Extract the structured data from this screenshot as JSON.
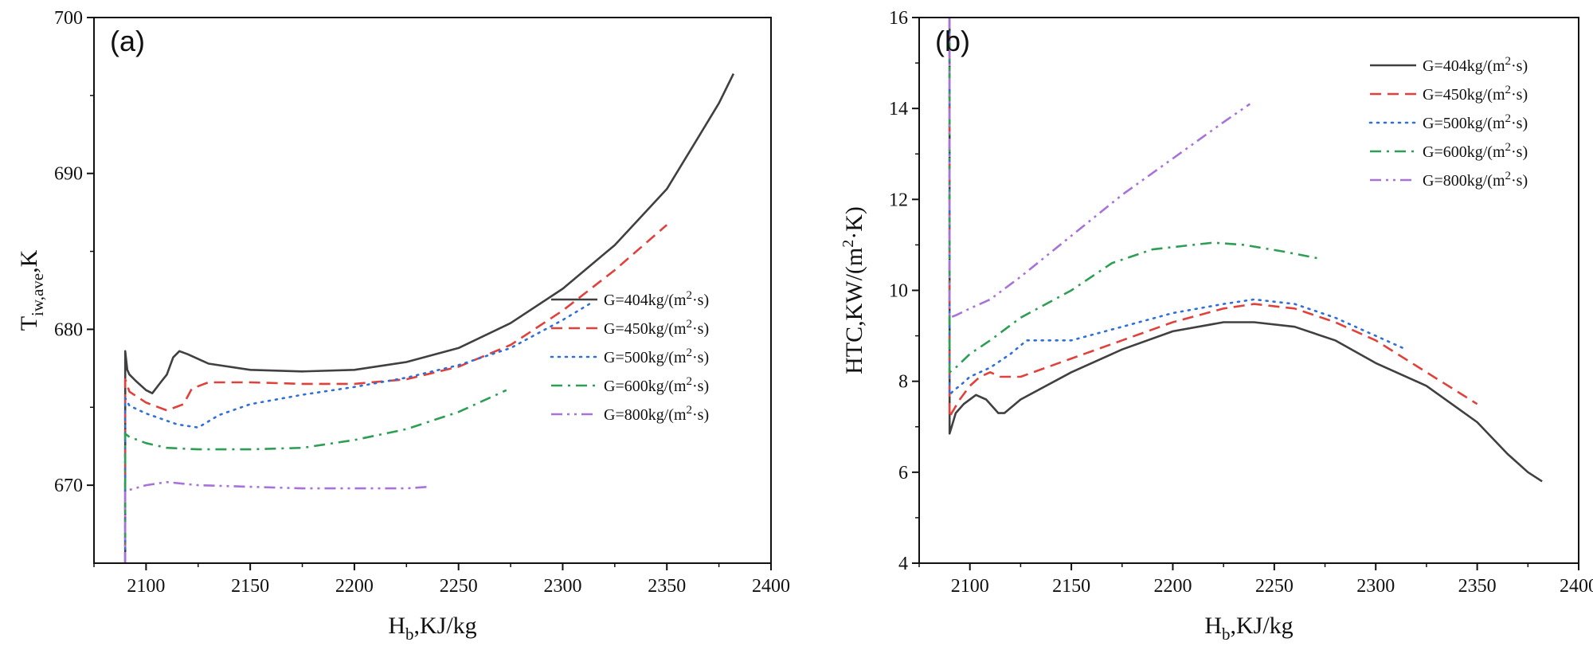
{
  "chart_data": [
    {
      "type": "line",
      "panel_label": "(a)",
      "xlabel": "H_b,KJ/kg",
      "ylabel": "T_iw,ave,K",
      "xlabel_main": "H",
      "xlabel_sub": "b",
      "xlabel_rest": ",KJ/kg",
      "ylabel_main": "T",
      "ylabel_sub": "iw,ave",
      "ylabel_rest": ",K",
      "xlim": [
        2075,
        2400
      ],
      "ylim": [
        665,
        700
      ],
      "xticks": [
        2100,
        2150,
        2200,
        2250,
        2300,
        2350,
        2400
      ],
      "yticks": [
        670,
        680,
        690,
        700
      ],
      "legend_position": "lower-right",
      "series": [
        {
          "name": "G=404kg/(m²·s)",
          "legend_text": "G=404kg/(m",
          "legend_sup": "2",
          "legend_tail": "·s)",
          "color": "#404040",
          "dash": "solid",
          "x": [
            2090,
            2090,
            2091,
            2092,
            2095,
            2100,
            2103,
            2107,
            2110,
            2113,
            2116,
            2120,
            2130,
            2150,
            2175,
            2200,
            2225,
            2250,
            2275,
            2300,
            2325,
            2350,
            2365,
            2375,
            2382
          ],
          "y": [
            665.0,
            678.6,
            677.4,
            677.1,
            676.7,
            676.1,
            675.9,
            676.6,
            677.1,
            678.2,
            678.6,
            678.4,
            677.8,
            677.4,
            677.3,
            677.4,
            677.9,
            678.8,
            680.4,
            682.6,
            685.4,
            689.0,
            692.3,
            694.5,
            696.4
          ]
        },
        {
          "name": "G=450kg/(m²·s)",
          "legend_text": "G=450kg/(m",
          "legend_sup": "2",
          "legend_tail": "·s)",
          "color": "#e0413b",
          "dash": "dashed",
          "x": [
            2090,
            2090,
            2092,
            2100,
            2110,
            2118,
            2122,
            2130,
            2150,
            2175,
            2200,
            2225,
            2250,
            2275,
            2300,
            2325,
            2350
          ],
          "y": [
            665.0,
            676.8,
            676.0,
            675.3,
            674.8,
            675.2,
            676.2,
            676.6,
            676.6,
            676.5,
            676.5,
            676.8,
            677.6,
            679.0,
            681.2,
            683.8,
            686.7
          ]
        },
        {
          "name": "G=500kg/(m²·s)",
          "legend_text": "G=500kg/(m",
          "legend_sup": "2",
          "legend_tail": "·s)",
          "color": "#2e6fd8",
          "dash": "dotted",
          "x": [
            2090,
            2090,
            2092,
            2100,
            2115,
            2125,
            2135,
            2150,
            2175,
            2200,
            2225,
            2250,
            2275,
            2300,
            2315
          ],
          "y": [
            665.0,
            675.6,
            675.1,
            674.6,
            673.9,
            673.7,
            674.5,
            675.2,
            675.8,
            676.3,
            676.9,
            677.7,
            678.8,
            680.6,
            681.8
          ]
        },
        {
          "name": "G=600kg/(m²·s)",
          "legend_text": "G=600kg/(m",
          "legend_sup": "2",
          "legend_tail": "·s)",
          "color": "#2e9e55",
          "dash": "dashdot",
          "x": [
            2090,
            2090,
            2092,
            2100,
            2110,
            2125,
            2150,
            2175,
            2200,
            2225,
            2250,
            2273
          ],
          "y": [
            665.0,
            673.3,
            673.1,
            672.7,
            672.4,
            672.3,
            672.3,
            672.4,
            672.9,
            673.6,
            674.7,
            676.1
          ]
        },
        {
          "name": "G=800kg/(m²·s)",
          "legend_text": "G=800kg/(m",
          "legend_sup": "2",
          "legend_tail": "·s)",
          "color": "#a873d8",
          "dash": "dashdotdot",
          "x": [
            2090,
            2090,
            2092,
            2100,
            2110,
            2125,
            2150,
            2175,
            2200,
            2225,
            2236
          ],
          "y": [
            665.0,
            669.6,
            669.7,
            670.0,
            670.2,
            670.0,
            669.9,
            669.8,
            669.8,
            669.8,
            669.9
          ]
        }
      ]
    },
    {
      "type": "line",
      "panel_label": "(b)",
      "xlabel": "H_b,KJ/kg",
      "ylabel": "HTC,KW/(m²·K)",
      "xlabel_main": "H",
      "xlabel_sub": "b",
      "xlabel_rest": ",KJ/kg",
      "ylabel_main": "HTC,KW/(m",
      "ylabel_sup": "2",
      "ylabel_rest": "·K)",
      "xlim": [
        2075,
        2400
      ],
      "ylim": [
        4,
        16
      ],
      "xticks": [
        2100,
        2150,
        2200,
        2250,
        2300,
        2350,
        2400
      ],
      "yticks": [
        4,
        6,
        8,
        10,
        12,
        14,
        16
      ],
      "legend_position": "top-right",
      "series": [
        {
          "name": "G=404kg/(m²·s)",
          "legend_text": "G=404kg/(m",
          "legend_sup": "2",
          "legend_tail": "·s)",
          "color": "#404040",
          "dash": "solid",
          "x": [
            2090,
            2090,
            2091,
            2093,
            2097,
            2103,
            2108,
            2112,
            2114,
            2117,
            2125,
            2150,
            2175,
            2200,
            2225,
            2240,
            2260,
            2280,
            2300,
            2325,
            2350,
            2365,
            2375,
            2382
          ],
          "y": [
            16,
            6.85,
            7.0,
            7.3,
            7.5,
            7.7,
            7.6,
            7.4,
            7.3,
            7.3,
            7.6,
            8.2,
            8.7,
            9.1,
            9.3,
            9.3,
            9.2,
            8.9,
            8.4,
            7.9,
            7.1,
            6.4,
            6.0,
            5.8
          ]
        },
        {
          "name": "G=450kg/(m²·s)",
          "legend_text": "G=450kg/(m",
          "legend_sup": "2",
          "legend_tail": "·s)",
          "color": "#e0413b",
          "dash": "dashed",
          "x": [
            2090,
            2090,
            2091,
            2095,
            2100,
            2105,
            2110,
            2115,
            2120,
            2125,
            2150,
            2175,
            2200,
            2225,
            2240,
            2260,
            2280,
            2300,
            2325,
            2350
          ],
          "y": [
            16,
            7.2,
            7.3,
            7.6,
            7.9,
            8.1,
            8.2,
            8.1,
            8.1,
            8.1,
            8.5,
            8.9,
            9.3,
            9.6,
            9.7,
            9.6,
            9.3,
            8.9,
            8.2,
            7.5
          ]
        },
        {
          "name": "G=500kg/(m²·s)",
          "legend_text": "G=500kg/(m",
          "legend_sup": "2",
          "legend_tail": "·s)",
          "color": "#2e6fd8",
          "dash": "dotted",
          "x": [
            2090,
            2090,
            2092,
            2095,
            2100,
            2110,
            2120,
            2128,
            2150,
            2175,
            2200,
            2225,
            2240,
            2260,
            2280,
            2300,
            2315
          ],
          "y": [
            16,
            7.7,
            7.8,
            7.9,
            8.1,
            8.3,
            8.6,
            8.9,
            8.9,
            9.2,
            9.5,
            9.7,
            9.8,
            9.7,
            9.4,
            9.0,
            8.7
          ]
        },
        {
          "name": "G=600kg/(m²·s)",
          "legend_text": "G=600kg/(m",
          "legend_sup": "2",
          "legend_tail": "·s)",
          "color": "#2e9e55",
          "dash": "dashdot",
          "x": [
            2090,
            2090,
            2093,
            2100,
            2110,
            2125,
            2150,
            2170,
            2190,
            2210,
            2220,
            2235,
            2255,
            2272
          ],
          "y": [
            16,
            8.2,
            8.3,
            8.6,
            8.9,
            9.4,
            10.0,
            10.6,
            10.9,
            11.0,
            11.05,
            11.0,
            10.85,
            10.7
          ]
        },
        {
          "name": "G=800kg/(m²·s)",
          "legend_text": "G=800kg/(m",
          "legend_sup": "2",
          "legend_tail": "·s)",
          "color": "#a873d8",
          "dash": "dashdotdot",
          "x": [
            2090,
            2090,
            2093,
            2100,
            2110,
            2125,
            2150,
            2175,
            2200,
            2225,
            2238
          ],
          "y": [
            16,
            9.4,
            9.45,
            9.6,
            9.8,
            10.3,
            11.2,
            12.1,
            12.9,
            13.7,
            14.1
          ]
        }
      ]
    }
  ]
}
